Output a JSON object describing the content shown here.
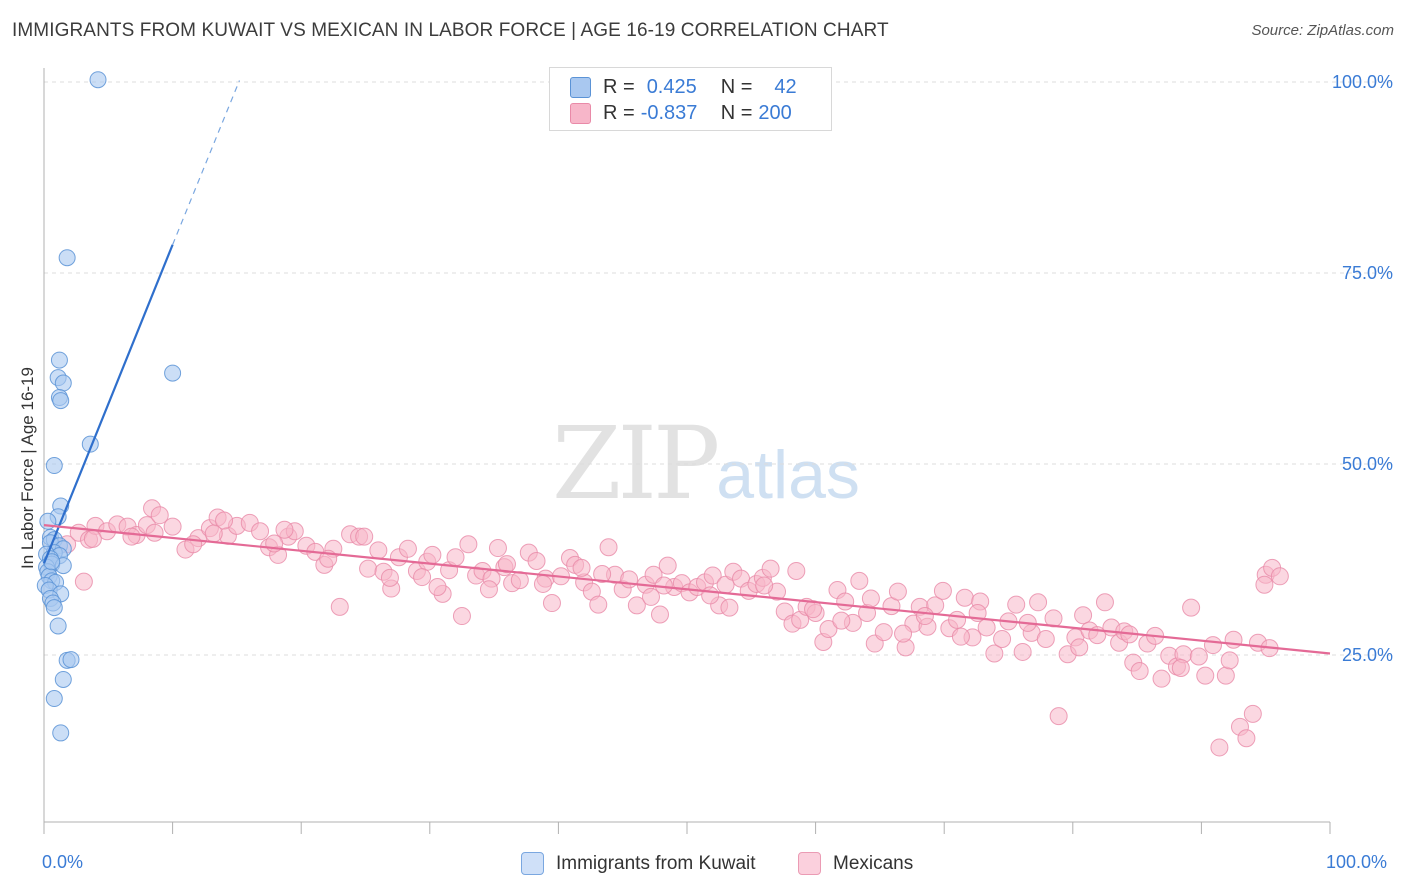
{
  "header": {
    "title": "IMMIGRANTS FROM KUWAIT VS MEXICAN IN LABOR FORCE | AGE 16-19 CORRELATION CHART",
    "source": "Source: ZipAtlas.com"
  },
  "watermark": {
    "zip": "ZIP",
    "atlas": "atlas"
  },
  "legend": {
    "rows": [
      {
        "r_label": "R =",
        "r_value": "0.425",
        "n_label": "N =",
        "n_value": "42",
        "color": "#a9c8f0"
      },
      {
        "r_label": "R =",
        "r_value": "-0.837",
        "n_label": "N =",
        "n_value": "200",
        "color": "#f7b6c9"
      }
    ]
  },
  "colors": {
    "kuwait_fill": "#a9c8f0",
    "kuwait_stroke": "#5b93d6",
    "kuwait_line": "#2f6fcc",
    "mexican_fill": "#f7b6c9",
    "mexican_stroke": "#e98aa8",
    "mexican_line": "#e46a96",
    "axis_text": "#3a7bd5"
  },
  "chart_data": {
    "type": "scatter",
    "title": "IMMIGRANTS FROM KUWAIT VS MEXICAN IN LABOR FORCE | AGE 16-19 CORRELATION CHART",
    "xlabel": "",
    "ylabel": "In Labor Force | Age 16-19",
    "xlim": [
      0,
      100
    ],
    "ylim": [
      4,
      102
    ],
    "x_tick_labels": [
      "0.0%",
      "100.0%"
    ],
    "y_ticks": [
      25,
      50,
      75,
      100
    ],
    "y_tick_labels": [
      "25.0%",
      "50.0%",
      "75.0%",
      "100.0%"
    ],
    "grid": true,
    "legend_position": "bottom",
    "series": [
      {
        "name": "Immigrants from Kuwait",
        "points": [
          [
            4.2,
            100.3
          ],
          [
            1.8,
            77.0
          ],
          [
            1.2,
            63.6
          ],
          [
            1.1,
            61.3
          ],
          [
            1.5,
            60.6
          ],
          [
            1.2,
            58.7
          ],
          [
            1.3,
            58.3
          ],
          [
            10.0,
            61.9
          ],
          [
            3.6,
            52.6
          ],
          [
            0.8,
            49.8
          ],
          [
            1.3,
            44.5
          ],
          [
            1.1,
            43.1
          ],
          [
            0.3,
            42.5
          ],
          [
            0.5,
            40.4
          ],
          [
            0.8,
            40.1
          ],
          [
            0.5,
            39.7
          ],
          [
            1.2,
            39.3
          ],
          [
            1.5,
            38.9
          ],
          [
            0.8,
            38.4
          ],
          [
            1.2,
            38.0
          ],
          [
            0.2,
            38.2
          ],
          [
            0.5,
            37.6
          ],
          [
            0.6,
            36.9
          ],
          [
            1.5,
            36.7
          ],
          [
            0.2,
            36.5
          ],
          [
            0.3,
            35.9
          ],
          [
            0.4,
            35.3
          ],
          [
            0.6,
            34.7
          ],
          [
            0.9,
            34.5
          ],
          [
            0.1,
            34.1
          ],
          [
            0.4,
            33.5
          ],
          [
            1.3,
            33.0
          ],
          [
            0.5,
            32.4
          ],
          [
            0.7,
            31.8
          ],
          [
            0.8,
            31.2
          ],
          [
            1.1,
            28.8
          ],
          [
            1.8,
            24.3
          ],
          [
            2.1,
            24.4
          ],
          [
            1.5,
            21.8
          ],
          [
            0.8,
            19.3
          ],
          [
            1.3,
            14.8
          ],
          [
            0.6,
            37.2
          ]
        ]
      },
      {
        "name": "Mexicans",
        "points": [
          [
            1.8,
            39.5
          ],
          [
            2.7,
            41.0
          ],
          [
            3.5,
            40.1
          ],
          [
            4.0,
            41.9
          ],
          [
            4.9,
            41.2
          ],
          [
            5.7,
            42.1
          ],
          [
            6.5,
            41.8
          ],
          [
            7.2,
            40.7
          ],
          [
            8.0,
            42.0
          ],
          [
            8.4,
            44.2
          ],
          [
            9.0,
            43.3
          ],
          [
            10.0,
            41.8
          ],
          [
            11.0,
            38.8
          ],
          [
            12.0,
            40.3
          ],
          [
            12.9,
            41.6
          ],
          [
            13.5,
            43.0
          ],
          [
            14.3,
            40.6
          ],
          [
            15.0,
            41.9
          ],
          [
            16.0,
            42.3
          ],
          [
            16.8,
            41.2
          ],
          [
            17.5,
            39.1
          ],
          [
            18.2,
            38.1
          ],
          [
            19.0,
            40.5
          ],
          [
            19.5,
            41.2
          ],
          [
            20.4,
            39.3
          ],
          [
            21.1,
            38.5
          ],
          [
            21.8,
            36.8
          ],
          [
            22.5,
            38.9
          ],
          [
            23.0,
            31.3
          ],
          [
            23.8,
            40.8
          ],
          [
            24.5,
            40.5
          ],
          [
            25.2,
            36.3
          ],
          [
            26.0,
            38.7
          ],
          [
            26.4,
            35.9
          ],
          [
            27.0,
            33.7
          ],
          [
            27.6,
            37.8
          ],
          [
            28.3,
            38.9
          ],
          [
            29.0,
            36.0
          ],
          [
            29.8,
            37.2
          ],
          [
            30.2,
            38.1
          ],
          [
            31.0,
            33.0
          ],
          [
            31.5,
            36.1
          ],
          [
            32.0,
            37.8
          ],
          [
            32.5,
            30.1
          ],
          [
            33.0,
            39.5
          ],
          [
            33.6,
            35.4
          ],
          [
            34.1,
            36.0
          ],
          [
            34.8,
            35.0
          ],
          [
            35.3,
            39.0
          ],
          [
            35.8,
            36.5
          ],
          [
            36.4,
            34.4
          ],
          [
            37.0,
            34.8
          ],
          [
            37.7,
            38.4
          ],
          [
            38.3,
            37.3
          ],
          [
            39.0,
            35.0
          ],
          [
            39.5,
            31.8
          ],
          [
            40.2,
            35.3
          ],
          [
            40.9,
            37.7
          ],
          [
            41.3,
            36.8
          ],
          [
            42.0,
            34.5
          ],
          [
            42.6,
            33.3
          ],
          [
            43.1,
            31.6
          ],
          [
            43.9,
            39.1
          ],
          [
            44.4,
            35.5
          ],
          [
            45.0,
            33.6
          ],
          [
            45.5,
            34.9
          ],
          [
            46.1,
            31.5
          ],
          [
            46.8,
            34.2
          ],
          [
            47.4,
            35.5
          ],
          [
            47.9,
            30.3
          ],
          [
            48.5,
            36.7
          ],
          [
            49.0,
            33.9
          ],
          [
            49.6,
            34.4
          ],
          [
            50.2,
            33.2
          ],
          [
            50.8,
            33.9
          ],
          [
            51.4,
            34.5
          ],
          [
            52.0,
            35.4
          ],
          [
            52.5,
            31.5
          ],
          [
            53.0,
            34.2
          ],
          [
            53.6,
            35.9
          ],
          [
            54.2,
            35.0
          ],
          [
            54.8,
            33.4
          ],
          [
            55.4,
            34.3
          ],
          [
            55.9,
            35.1
          ],
          [
            56.5,
            36.3
          ],
          [
            57.0,
            33.3
          ],
          [
            57.6,
            30.7
          ],
          [
            58.2,
            29.1
          ],
          [
            58.8,
            29.6
          ],
          [
            59.3,
            31.3
          ],
          [
            60.0,
            30.5
          ],
          [
            60.6,
            26.7
          ],
          [
            61.0,
            28.4
          ],
          [
            61.7,
            33.5
          ],
          [
            62.3,
            32.0
          ],
          [
            62.9,
            29.2
          ],
          [
            63.4,
            34.7
          ],
          [
            64.0,
            30.5
          ],
          [
            64.6,
            26.5
          ],
          [
            65.3,
            28.0
          ],
          [
            65.9,
            31.4
          ],
          [
            66.4,
            33.3
          ],
          [
            67.0,
            26.0
          ],
          [
            67.6,
            29.1
          ],
          [
            68.1,
            31.3
          ],
          [
            68.7,
            28.7
          ],
          [
            69.3,
            31.5
          ],
          [
            69.9,
            33.4
          ],
          [
            70.4,
            28.5
          ],
          [
            71.0,
            29.6
          ],
          [
            71.6,
            32.5
          ],
          [
            72.2,
            27.3
          ],
          [
            72.8,
            32.0
          ],
          [
            73.3,
            28.6
          ],
          [
            73.9,
            25.2
          ],
          [
            74.5,
            27.1
          ],
          [
            75.0,
            29.4
          ],
          [
            75.6,
            31.6
          ],
          [
            76.1,
            25.4
          ],
          [
            76.8,
            27.9
          ],
          [
            77.3,
            31.9
          ],
          [
            77.9,
            27.1
          ],
          [
            78.5,
            29.8
          ],
          [
            78.9,
            17.0
          ],
          [
            79.6,
            25.1
          ],
          [
            80.2,
            27.3
          ],
          [
            80.8,
            30.2
          ],
          [
            81.3,
            28.2
          ],
          [
            81.9,
            27.6
          ],
          [
            82.5,
            31.9
          ],
          [
            83.0,
            28.6
          ],
          [
            83.6,
            26.6
          ],
          [
            84.0,
            28.1
          ],
          [
            84.7,
            24.0
          ],
          [
            85.2,
            22.9
          ],
          [
            85.8,
            26.5
          ],
          [
            86.4,
            27.5
          ],
          [
            86.9,
            21.9
          ],
          [
            87.5,
            24.9
          ],
          [
            88.1,
            23.5
          ],
          [
            88.6,
            25.1
          ],
          [
            89.2,
            31.2
          ],
          [
            89.8,
            24.8
          ],
          [
            90.3,
            22.3
          ],
          [
            90.9,
            26.3
          ],
          [
            91.4,
            12.9
          ],
          [
            91.9,
            22.3
          ],
          [
            92.5,
            27.0
          ],
          [
            93.0,
            15.6
          ],
          [
            93.5,
            14.1
          ],
          [
            94.0,
            17.3
          ],
          [
            94.4,
            26.6
          ],
          [
            95.0,
            35.5
          ],
          [
            95.5,
            36.4
          ],
          [
            96.1,
            35.3
          ],
          [
            94.9,
            34.2
          ],
          [
            3.1,
            34.6
          ],
          [
            6.8,
            40.5
          ],
          [
            11.6,
            39.5
          ],
          [
            14.0,
            42.6
          ],
          [
            17.9,
            39.6
          ],
          [
            22.1,
            37.6
          ],
          [
            26.9,
            35.1
          ],
          [
            30.6,
            33.9
          ],
          [
            34.6,
            33.6
          ],
          [
            38.8,
            34.3
          ],
          [
            43.4,
            35.6
          ],
          [
            47.2,
            32.6
          ],
          [
            51.8,
            32.8
          ],
          [
            56.0,
            34.1
          ],
          [
            59.8,
            31.0
          ],
          [
            64.3,
            32.4
          ],
          [
            68.5,
            30.1
          ],
          [
            72.6,
            30.5
          ],
          [
            76.5,
            29.2
          ],
          [
            80.5,
            26.0
          ],
          [
            84.4,
            27.7
          ],
          [
            88.4,
            23.3
          ],
          [
            92.2,
            24.3
          ],
          [
            95.3,
            25.9
          ],
          [
            3.8,
            40.2
          ],
          [
            8.6,
            41.0
          ],
          [
            13.2,
            40.9
          ],
          [
            18.7,
            41.4
          ],
          [
            24.9,
            40.5
          ],
          [
            29.4,
            35.2
          ],
          [
            36.0,
            36.9
          ],
          [
            41.8,
            36.4
          ],
          [
            48.2,
            34.1
          ],
          [
            53.3,
            31.2
          ],
          [
            58.5,
            36.0
          ],
          [
            62.0,
            29.5
          ],
          [
            66.8,
            27.8
          ],
          [
            71.3,
            27.4
          ]
        ]
      }
    ],
    "trend_lines": [
      {
        "series": "Immigrants from Kuwait",
        "from": [
          0,
          37.0
        ],
        "to": [
          10.0,
          78.7
        ],
        "dashed_to": [
          15.2,
          100.2
        ]
      },
      {
        "series": "Mexicans",
        "from": [
          0,
          42.0
        ],
        "to": [
          100.0,
          25.2
        ]
      }
    ]
  },
  "bottom_legend": {
    "items": [
      "Immigrants from Kuwait",
      "Mexicans"
    ]
  }
}
